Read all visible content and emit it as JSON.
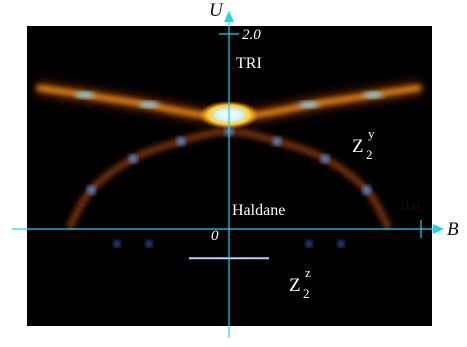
{
  "chart_data": {
    "type": "heatmap",
    "xlabel": "B",
    "ylabel": "U",
    "xlim": [
      -0.6,
      0.6
    ],
    "ylim": [
      -0.3,
      2.0
    ],
    "tick_labels": {
      "origin": "0",
      "x_max": "0.6",
      "y_max": "2.0"
    },
    "regions": [
      {
        "id": "tri",
        "text": "TRI"
      },
      {
        "id": "haldane",
        "text": "Haldane"
      },
      {
        "id": "z2y",
        "base": "Z",
        "sub": "2",
        "sup": "y"
      },
      {
        "id": "z2z",
        "base": "Z",
        "sub": "2",
        "sup": "z"
      }
    ],
    "features": {
      "upper_boundary": [
        {
          "B": -0.6,
          "U": 1.45
        },
        {
          "B": -0.3,
          "U": 1.3
        },
        {
          "B": 0.0,
          "U": 1.15
        },
        {
          "B": 0.3,
          "U": 1.3
        },
        {
          "B": 0.6,
          "U": 1.45
        }
      ],
      "arc_boundary": [
        {
          "B": -0.5,
          "U": 0.0
        },
        {
          "B": -0.43,
          "U": 0.4
        },
        {
          "B": -0.3,
          "U": 0.72
        },
        {
          "B": -0.15,
          "U": 0.9
        },
        {
          "B": 0.0,
          "U": 1.0
        },
        {
          "B": 0.15,
          "U": 0.9
        },
        {
          "B": 0.3,
          "U": 0.72
        },
        {
          "B": 0.43,
          "U": 0.4
        },
        {
          "B": 0.5,
          "U": 0.0
        }
      ],
      "lower_segment": {
        "B": [
          -0.15,
          0.15
        ],
        "U": -0.3
      },
      "axis_segments": [
        {
          "B": [
            -0.6,
            -0.5
          ],
          "U": 0.0
        },
        {
          "B": [
            0.5,
            0.6
          ],
          "U": 0.0
        }
      ]
    }
  }
}
